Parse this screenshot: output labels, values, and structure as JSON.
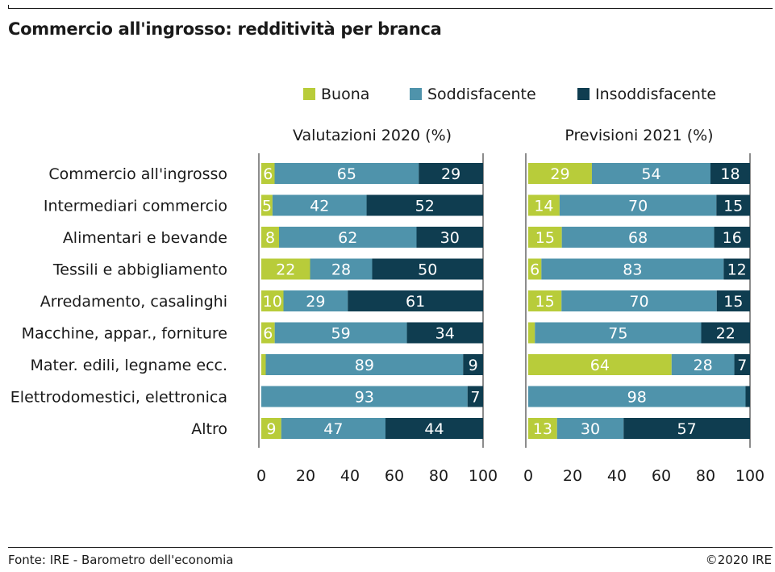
{
  "title": "Commercio all'ingrosso: redditività per branca",
  "source": "Fonte: IRE - Barometro dell'economia",
  "copyright": "©2020 IRE",
  "colors": {
    "buona": "#b8cc3a",
    "soddisfacente": "#4f93ab",
    "insoddisfacente": "#0f3d50",
    "axis": "#1a1a1a"
  },
  "chart_data": {
    "type": "bar",
    "orientation": "horizontal",
    "stacked": true,
    "legend": [
      "Buona",
      "Soddisfacente",
      "Insoddisfacente"
    ],
    "legend_placement": "top",
    "xlim": [
      0,
      100
    ],
    "xticks": [
      0,
      20,
      40,
      60,
      80,
      100
    ],
    "categories": [
      "Commercio all'ingrosso",
      "Intermediari commercio",
      "Alimentari e bevande",
      "Tessili e abbigliamento",
      "Arredamento, casalinghi",
      "Macchine, appar., forniture",
      "Mater. edili, legname ecc.",
      "Elettrodomestici, elettronica",
      "Altro"
    ],
    "panels": [
      {
        "title": "Valutazioni 2020 (%)",
        "series": [
          {
            "name": "Buona",
            "values": [
              6,
              5,
              8,
              22,
              10,
              6,
              2,
              0,
              9
            ],
            "labels": [
              "6",
              "5",
              "8",
              "22",
              "10",
              "6",
              "",
              "",
              "9"
            ]
          },
          {
            "name": "Soddisfacente",
            "values": [
              65,
              42,
              62,
              28,
              29,
              59,
              89,
              93,
              47
            ],
            "labels": [
              "65",
              "42",
              "62",
              "28",
              "29",
              "59",
              "89",
              "93",
              "47"
            ]
          },
          {
            "name": "Insoddisfacente",
            "values": [
              29,
              52,
              30,
              50,
              61,
              34,
              9,
              7,
              44
            ],
            "labels": [
              "29",
              "52",
              "30",
              "50",
              "61",
              "34",
              "9",
              "7",
              "44"
            ]
          }
        ]
      },
      {
        "title": "Previsioni 2021 (%)",
        "series": [
          {
            "name": "Buona",
            "values": [
              29,
              14,
              15,
              6,
              15,
              3,
              64,
              0,
              13
            ],
            "labels": [
              "29",
              "14",
              "15",
              "6",
              "15",
              "",
              "64",
              "",
              "13"
            ]
          },
          {
            "name": "Soddisfacente",
            "values": [
              54,
              70,
              68,
              83,
              70,
              75,
              28,
              98,
              30
            ],
            "labels": [
              "54",
              "70",
              "68",
              "83",
              "70",
              "75",
              "28",
              "98",
              "30"
            ]
          },
          {
            "name": "Insoddisfacente",
            "values": [
              18,
              15,
              16,
              12,
              15,
              22,
              7,
              2,
              57
            ],
            "labels": [
              "18",
              "15",
              "16",
              "12",
              "15",
              "22",
              "7",
              "",
              "57"
            ]
          }
        ]
      }
    ]
  }
}
